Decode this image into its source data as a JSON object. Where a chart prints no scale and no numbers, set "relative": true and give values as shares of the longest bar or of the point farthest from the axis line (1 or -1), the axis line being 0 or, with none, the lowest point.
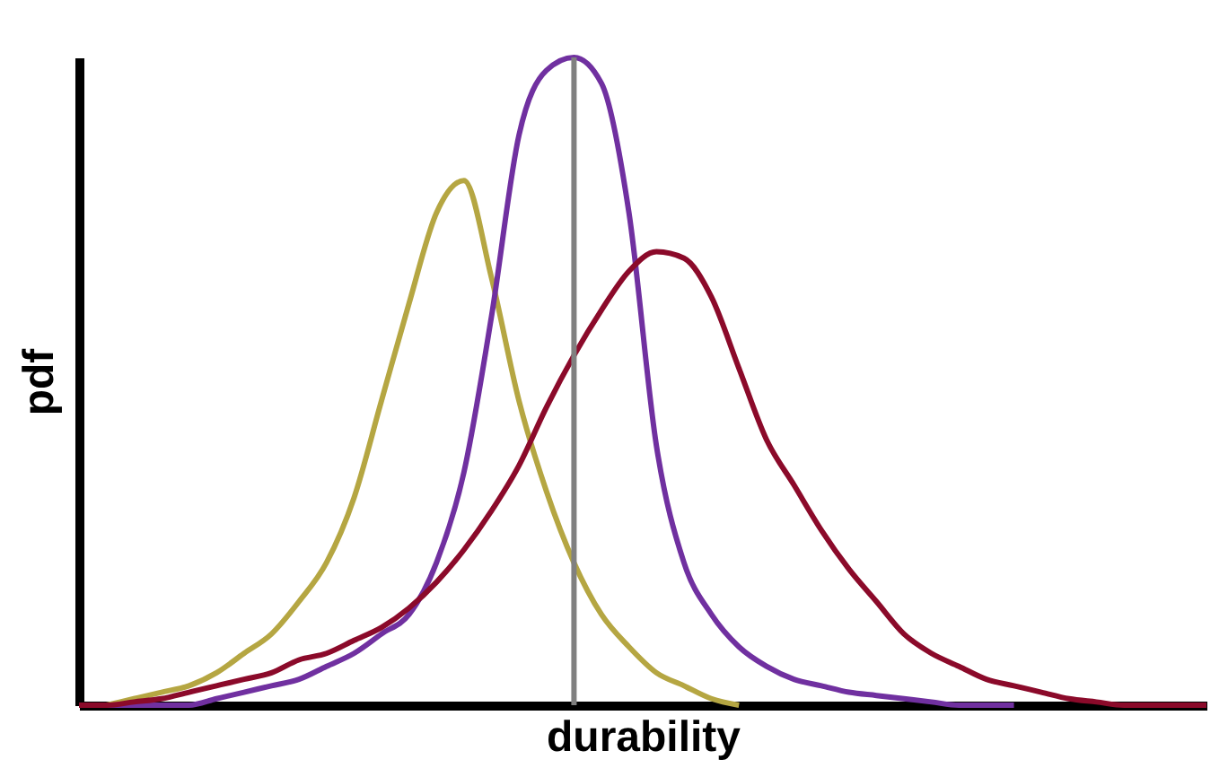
{
  "chart_data": {
    "type": "line",
    "relative": true,
    "xlabel": "durability",
    "ylabel": "pdf",
    "tick_labels": false,
    "grid": false,
    "marker": "none",
    "line_style": "solid",
    "categories": [
      null,
      null,
      null,
      null,
      null,
      null,
      null,
      null,
      null,
      null,
      null,
      null,
      null,
      null,
      null,
      null,
      null,
      null,
      null,
      null,
      null,
      null,
      null,
      null,
      null,
      null,
      null,
      null,
      null,
      null,
      null,
      null,
      null,
      null,
      null,
      null,
      null,
      null,
      null,
      null,
      null,
      null
    ],
    "series": [
      {
        "color": "#b5a642",
        "values": [
          null,
          0,
          0.01,
          0.02,
          0.03,
          0.05,
          0.08,
          0.11,
          0.16,
          0.22,
          0.32,
          0.47,
          0.62,
          0.76,
          0.81,
          0.66,
          0.47,
          0.33,
          0.22,
          0.14,
          0.09,
          0.05,
          0.03,
          0.01,
          0,
          null,
          null,
          null,
          null,
          null,
          null,
          null,
          null,
          null,
          null,
          null,
          null,
          null,
          null,
          null,
          null,
          null
        ]
      },
      {
        "color": "#7030a0",
        "values": [
          0,
          0,
          0,
          0,
          0,
          0.01,
          0.02,
          0.03,
          0.04,
          0.06,
          0.08,
          0.11,
          0.14,
          0.22,
          0.36,
          0.6,
          0.88,
          0.98,
          1.0,
          0.96,
          0.76,
          0.4,
          0.22,
          0.14,
          0.09,
          0.06,
          0.04,
          0.03,
          0.02,
          0.015,
          0.01,
          0.005,
          0,
          0,
          0,
          null,
          null,
          null,
          null,
          null,
          null,
          null
        ]
      },
      {
        "color": "#8b0a2a",
        "values": [
          0,
          0,
          0.005,
          0.01,
          0.02,
          0.03,
          0.04,
          0.05,
          0.07,
          0.08,
          0.1,
          0.12,
          0.15,
          0.19,
          0.24,
          0.3,
          0.37,
          0.46,
          0.54,
          0.61,
          0.67,
          0.7,
          0.69,
          0.63,
          0.52,
          0.41,
          0.34,
          0.27,
          0.21,
          0.16,
          0.11,
          0.08,
          0.06,
          0.04,
          0.03,
          0.02,
          0.01,
          0.005,
          0,
          0,
          0,
          0
        ]
      }
    ]
  }
}
